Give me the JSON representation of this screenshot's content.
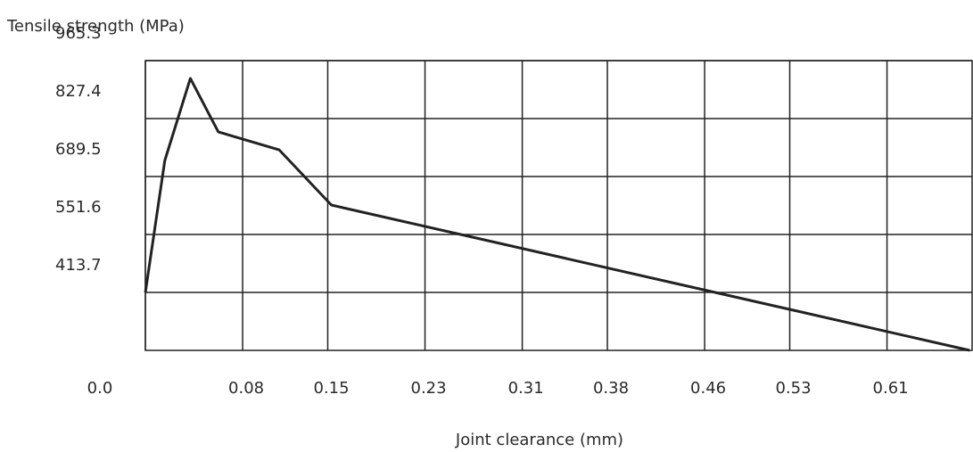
{
  "chart_data": {
    "type": "line",
    "y_label": "Tensile strength (MPa)",
    "x_label": "Joint clearance (mm)",
    "x": [
      0,
      0.016,
      0.037,
      0.06,
      0.11,
      0.153,
      0.678
    ],
    "series": [
      {
        "color": "#222222",
        "values": [
          413.7,
          727.7,
          922.9,
          795.6,
          753.1,
          621.6,
          275.8
        ]
      }
    ],
    "xlim": [
      0,
      0.68
    ],
    "xticks": [
      {
        "value": 0,
        "label": "0.0"
      },
      0.08,
      0.15,
      0.23,
      0.31,
      0.38,
      0.46,
      0.53,
      0.61
    ],
    "ylim": [
      275.8,
      965.3
    ],
    "yticks": [
      413.7,
      551.6,
      689.5,
      827.4,
      965.3
    ],
    "grid": true
  }
}
